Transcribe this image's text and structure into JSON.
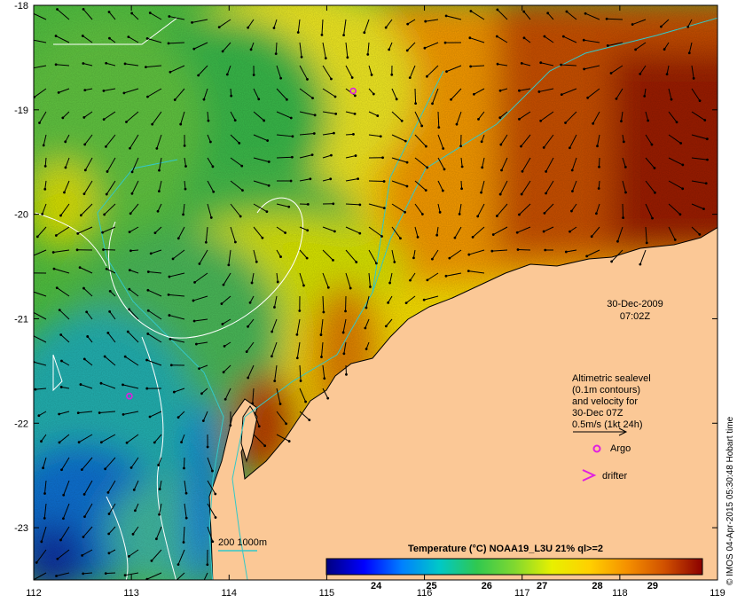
{
  "map": {
    "lon_range": [
      112,
      119
    ],
    "lat_range": [
      -23.5,
      -18
    ],
    "x_ticks": [
      "112",
      "113",
      "114",
      "115",
      "116",
      "117",
      "118",
      "119"
    ],
    "y_ticks": [
      "-18",
      "-19",
      "-20",
      "-21",
      "-22",
      "-23"
    ],
    "date": "30-Dec-2009",
    "time": "07:02Z",
    "land_color": "#fbc896",
    "contour_color": "#33c8c8",
    "sealevel_color": "#ffffff"
  },
  "legend": {
    "lines": [
      "Altimetric sealevel",
      "(0.1m contours)",
      "and velocity for",
      "30-Dec 07Z",
      "0.5m/s (1kt 24h)"
    ],
    "argo_label": "Argo",
    "drifter_label": "drifter",
    "argo_color": "#e020e0",
    "drifter_color": "#e020e0",
    "isobath_label": "200  1000m"
  },
  "argo_floats": [
    {
      "lon": 115.27,
      "lat": -18.82
    },
    {
      "lon": 112.98,
      "lat": -21.74
    }
  ],
  "colorbar": {
    "title": "Temperature (°C) NOAA19_L3U 21% ql>=2",
    "range": [
      23.1,
      29.9
    ],
    "labels": [
      "24",
      "25",
      "26",
      "27",
      "28",
      "29"
    ],
    "colors": [
      "#00007f",
      "#0000ff",
      "#007fff",
      "#00c8c8",
      "#30c850",
      "#80d830",
      "#e8f000",
      "#ffd000",
      "#f59000",
      "#d05000",
      "#8b0000"
    ]
  },
  "copyright": "© IMOS 04-Apr-2015 05:30:48 Hobart time"
}
